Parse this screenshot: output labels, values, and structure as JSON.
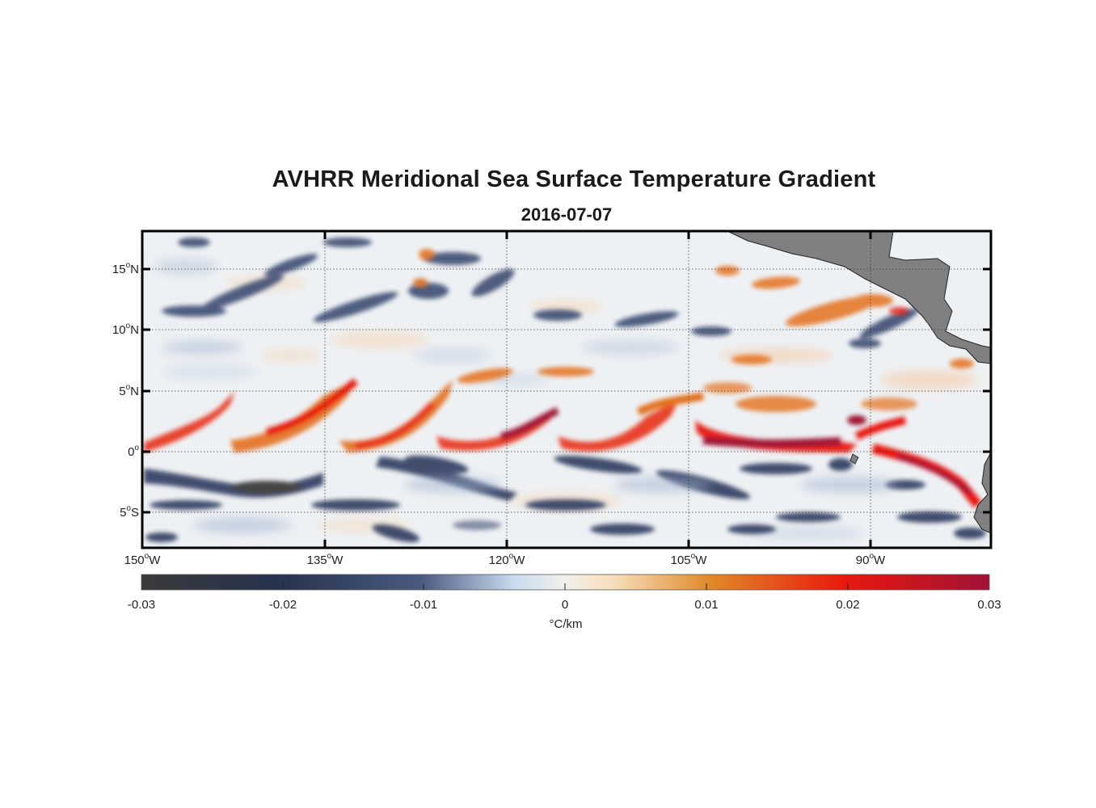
{
  "title": "AVHRR Meridional Sea Surface Temperature Gradient",
  "subtitle": "2016-07-07",
  "lat_labels": [
    {
      "deg": "15",
      "hem": "N"
    },
    {
      "deg": "10",
      "hem": "N"
    },
    {
      "deg": "5",
      "hem": "N"
    },
    {
      "deg": "0",
      "hem": ""
    },
    {
      "deg": "5",
      "hem": "S"
    }
  ],
  "lon_labels": [
    {
      "deg": "150",
      "hem": "W"
    },
    {
      "deg": "135",
      "hem": "W"
    },
    {
      "deg": "120",
      "hem": "W"
    },
    {
      "deg": "105",
      "hem": "W"
    },
    {
      "deg": "90",
      "hem": "W"
    }
  ],
  "colorbar": {
    "ticks": [
      "-0.03",
      "-0.02",
      "-0.01",
      "0",
      "0.01",
      "0.02",
      "0.03"
    ],
    "unit": "°C/km",
    "colors": [
      "#3a3a3a",
      "#26324e",
      "#4a5a80",
      "#c9dcef",
      "#f3f1ec",
      "#e08a2a",
      "#e8180e",
      "#a01235"
    ]
  },
  "colors": {
    "land": "#808080",
    "frame": "#000000",
    "ocean_neutral": "#eef1f4"
  }
}
